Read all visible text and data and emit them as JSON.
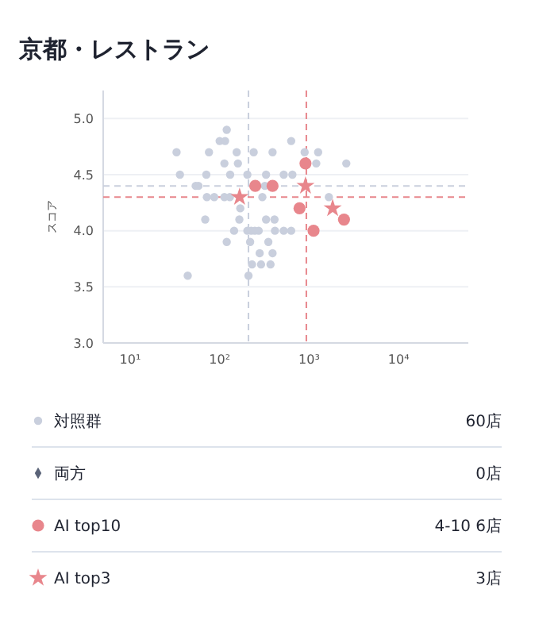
{
  "chart_data": {
    "type": "scatter",
    "title": "京都・レストラン",
    "ylabel": "スコア",
    "log": "x",
    "xlim": [
      5,
      60000
    ],
    "xticks": [
      {
        "value": 10,
        "label": "10¹"
      },
      {
        "value": 100,
        "label": "10²"
      },
      {
        "value": 1000,
        "label": "10³"
      },
      {
        "value": 10000,
        "label": "10⁴"
      }
    ],
    "ylim": [
      3,
      5.25
    ],
    "yticks": [
      {
        "value": 3,
        "label": "3.0"
      },
      {
        "value": 3.5,
        "label": "3.5"
      },
      {
        "value": 4,
        "label": "4.0"
      },
      {
        "value": 4.5,
        "label": "4.5"
      },
      {
        "value": 5,
        "label": "5.0"
      }
    ],
    "grid": "y",
    "legend": "bottom",
    "series": [
      {
        "name": "対照群",
        "color": "#c9cfdd",
        "marker": "circle",
        "x": [
          33,
          36,
          44,
          54,
          58,
          69,
          71,
          72,
          76,
          87,
          100,
          115,
          120,
          113,
          113,
          130,
          120,
          131,
          145,
          155,
          160,
          170,
          166,
          204,
          204,
          225,
          247,
          273,
          219,
          210,
          230,
          290,
          370,
          240,
          280,
          300,
          320,
          330,
          330,
          350,
          390,
          390,
          410,
          415,
          520,
          520,
          630,
          630,
          650,
          890,
          1200,
          1260,
          1660,
          2600
        ],
        "values": [
          4.7,
          4.5,
          3.6,
          4.4,
          4.4,
          4.1,
          4.5,
          4.3,
          4.7,
          4.3,
          4.8,
          4.8,
          4.9,
          4.6,
          4.3,
          4.3,
          3.9,
          4.5,
          4.0,
          4.7,
          4.6,
          4.2,
          4.1,
          4.5,
          4.0,
          4.0,
          4.0,
          4.0,
          3.9,
          3.6,
          3.7,
          3.7,
          3.7,
          4.7,
          3.8,
          4.3,
          4.4,
          4.5,
          4.1,
          3.9,
          4.7,
          3.8,
          4.1,
          4.0,
          4.5,
          4.0,
          4.8,
          4.0,
          4.5,
          4.7,
          4.6,
          4.7,
          4.3,
          4.6
        ]
      },
      {
        "name": "両方",
        "color": "#5a6378",
        "marker": "diamond"
      },
      {
        "name": "AI top10",
        "color": "#e8868c",
        "marker": "circle",
        "x": [
          250,
          390,
          780,
          910,
          1120,
          2450
        ],
        "values": [
          4.4,
          4.4,
          4.2,
          4.6,
          4.0,
          4.1
        ]
      },
      {
        "name": "AI top3",
        "color": "#e8868c",
        "marker": "star",
        "x": [
          167,
          910,
          1830
        ],
        "values": [
          4.3,
          4.4,
          4.2
        ]
      }
    ],
    "ref_lines": [
      {
        "axis": "x",
        "value": 210,
        "color": "#c9cfdd",
        "line_style": "dashed"
      },
      {
        "axis": "y",
        "value": 4.4,
        "color": "#c9cfdd",
        "line_style": "dashed"
      },
      {
        "axis": "x",
        "value": 930,
        "color": "#e8868c",
        "line_style": "dashed"
      },
      {
        "axis": "y",
        "value": 4.3,
        "color": "#e8868c",
        "line_style": "dashed"
      }
    ],
    "annotations": [
      "60店",
      "0店",
      "4-10 6店",
      "3店"
    ]
  }
}
